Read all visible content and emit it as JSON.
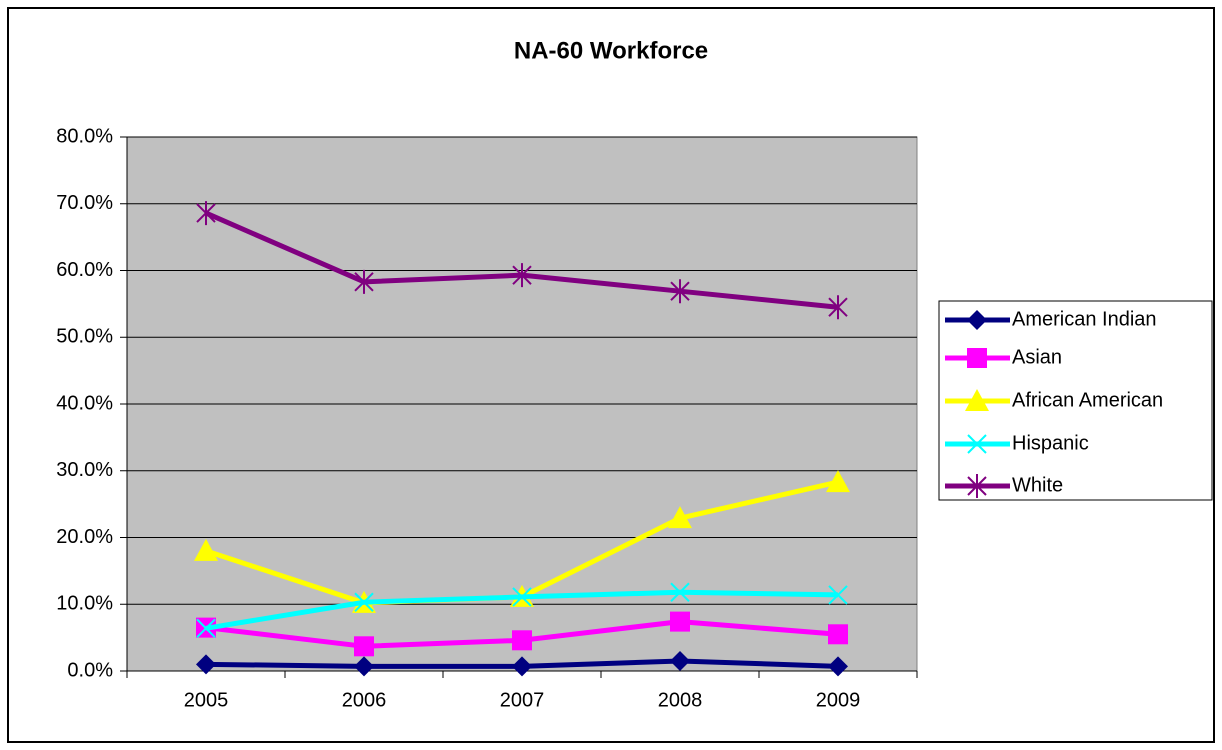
{
  "chart_data": {
    "type": "line",
    "title": "NA-60 Workforce",
    "categories": [
      "2005",
      "2006",
      "2007",
      "2008",
      "2009"
    ],
    "series": [
      {
        "name": "American Indian",
        "color": "#000080",
        "marker": "diamond",
        "values": [
          1.0,
          0.7,
          0.7,
          1.5,
          0.7
        ]
      },
      {
        "name": "Asian",
        "color": "#ff00ff",
        "marker": "square",
        "values": [
          6.5,
          3.7,
          4.6,
          7.4,
          5.5
        ]
      },
      {
        "name": "African American",
        "color": "#ffff00",
        "marker": "triangle",
        "values": [
          18.0,
          10.2,
          11.1,
          22.9,
          28.3
        ]
      },
      {
        "name": "Hispanic",
        "color": "#00ffff",
        "marker": "x",
        "values": [
          6.4,
          10.3,
          11.1,
          11.8,
          11.4
        ]
      },
      {
        "name": "White",
        "color": "#800080",
        "marker": "star",
        "values": [
          68.6,
          58.3,
          59.3,
          56.9,
          54.5
        ]
      }
    ],
    "ylim": [
      0,
      80
    ],
    "yticks": [
      {
        "value": 0,
        "label": "0.0%"
      },
      {
        "value": 10,
        "label": "10.0%"
      },
      {
        "value": 20,
        "label": "20.0%"
      },
      {
        "value": 30,
        "label": "30.0%"
      },
      {
        "value": 40,
        "label": "40.0%"
      },
      {
        "value": 50,
        "label": "50.0%"
      },
      {
        "value": 60,
        "label": "60.0%"
      },
      {
        "value": 70,
        "label": "70.0%"
      },
      {
        "value": 80,
        "label": "80.0%"
      }
    ],
    "grid": true,
    "legend": "right"
  }
}
